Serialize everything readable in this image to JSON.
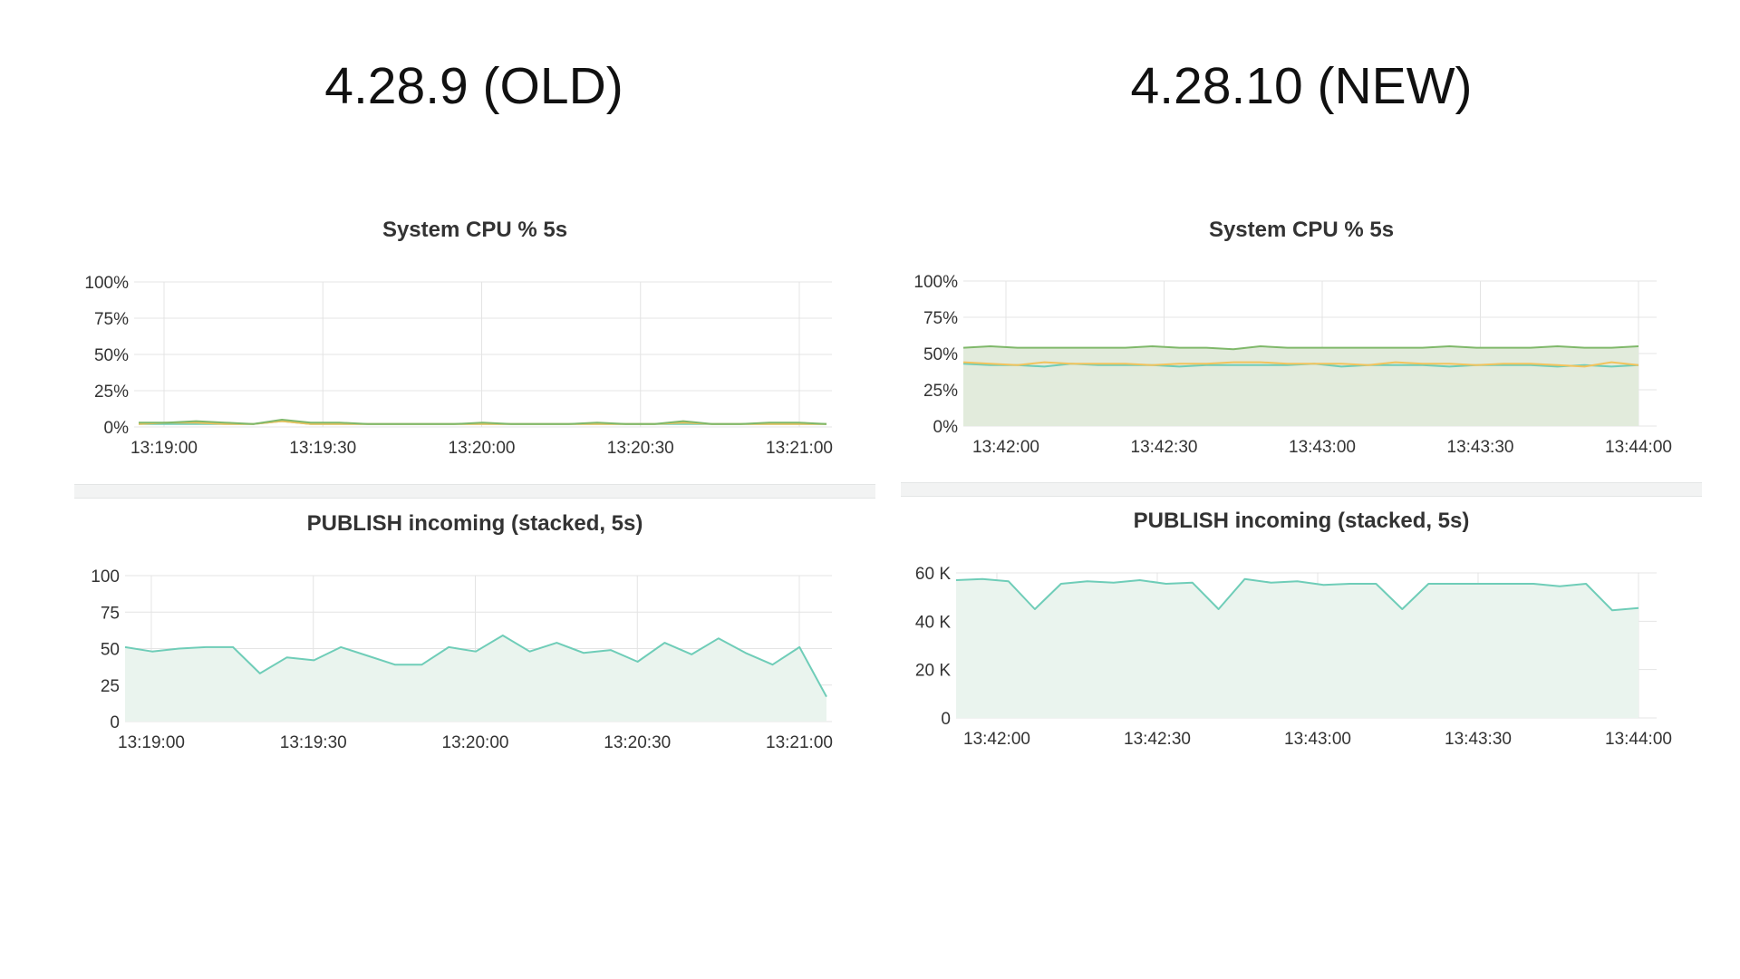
{
  "header": {
    "left_title": "4.28.9 (OLD)",
    "right_title": "4.28.10 (NEW)"
  },
  "colors": {
    "grid": "#e4e4e4",
    "teal": "#6fcdb8",
    "green": "#7fb86a",
    "yellow": "#f2c35d",
    "fill_light": "#eaf4ee",
    "fill_green": "#e2ebdc"
  },
  "chart_data": [
    {
      "id": "cpu-old",
      "type": "line",
      "title": "System CPU % 5s",
      "x_ticks": [
        "13:19:00",
        "13:19:30",
        "13:20:00",
        "13:20:30",
        "13:21:00"
      ],
      "y_ticks": [
        "0%",
        "25%",
        "50%",
        "75%",
        "100%"
      ],
      "ylim": [
        0,
        100
      ],
      "series": [
        {
          "color": "#7fb86a",
          "values": [
            3,
            3,
            4,
            3,
            2,
            5,
            3,
            3,
            2,
            2,
            2,
            2,
            3,
            2,
            2,
            2,
            3,
            2,
            2,
            4,
            2,
            2,
            3,
            3,
            2
          ]
        },
        {
          "color": "#f2c35d",
          "values": [
            2,
            3,
            3,
            2,
            2,
            4,
            2,
            2,
            2,
            2,
            2,
            2,
            2,
            2,
            2,
            2,
            2,
            2,
            2,
            3,
            2,
            2,
            2,
            2,
            2
          ]
        },
        {
          "color": "#6fcdb8",
          "values": [
            2,
            2,
            2,
            2,
            2,
            4,
            2,
            2,
            2,
            2,
            2,
            2,
            2,
            2,
            2,
            2,
            2,
            2,
            2,
            2,
            2,
            2,
            2,
            2,
            2
          ]
        }
      ]
    },
    {
      "id": "publish-old",
      "type": "area",
      "title": "PUBLISH incoming (stacked, 5s)",
      "x_ticks": [
        "13:19:00",
        "13:19:30",
        "13:20:00",
        "13:20:30",
        "13:21:00"
      ],
      "y_ticks": [
        "0",
        "25",
        "50",
        "75",
        "100"
      ],
      "ylim": [
        0,
        100
      ],
      "series": [
        {
          "color": "#6fcdb8",
          "values": [
            51,
            48,
            50,
            51,
            51,
            33,
            44,
            42,
            51,
            45,
            39,
            39,
            51,
            48,
            59,
            48,
            54,
            47,
            49,
            41,
            54,
            46,
            57,
            47,
            39,
            51,
            17
          ]
        }
      ]
    },
    {
      "id": "cpu-new",
      "type": "area",
      "title": "System CPU % 5s",
      "x_ticks": [
        "13:42:00",
        "13:42:30",
        "13:43:00",
        "13:43:30",
        "13:44:00"
      ],
      "y_ticks": [
        "0%",
        "25%",
        "50%",
        "75%",
        "100%"
      ],
      "ylim": [
        0,
        100
      ],
      "series": [
        {
          "color": "#7fb86a",
          "values": [
            54,
            55,
            54,
            54,
            54,
            54,
            54,
            55,
            54,
            54,
            53,
            55,
            54,
            54,
            54,
            54,
            54,
            54,
            55,
            54,
            54,
            54,
            55,
            54,
            54,
            55
          ]
        },
        {
          "color": "#f2c35d",
          "values": [
            44,
            43,
            42,
            44,
            43,
            43,
            43,
            42,
            43,
            43,
            44,
            44,
            43,
            43,
            43,
            42,
            44,
            43,
            43,
            42,
            43,
            43,
            42,
            41,
            44,
            42
          ]
        },
        {
          "color": "#6fcdb8",
          "values": [
            43,
            42,
            42,
            41,
            43,
            42,
            42,
            42,
            41,
            42,
            42,
            42,
            42,
            43,
            41,
            42,
            42,
            42,
            41,
            42,
            42,
            42,
            41,
            42,
            41,
            42
          ]
        }
      ]
    },
    {
      "id": "publish-new",
      "type": "area",
      "title": "PUBLISH incoming (stacked, 5s)",
      "x_ticks": [
        "13:42:00",
        "13:42:30",
        "13:43:00",
        "13:43:30",
        "13:44:00"
      ],
      "y_ticks": [
        "0",
        "20 K",
        "40 K",
        "60 K"
      ],
      "ylim": [
        0,
        60000
      ],
      "series": [
        {
          "color": "#6fcdb8",
          "values": [
            57000,
            57500,
            56500,
            45000,
            55500,
            56500,
            56000,
            57000,
            55500,
            56000,
            45000,
            57500,
            56000,
            56500,
            55000,
            55500,
            55500,
            45000,
            55500,
            55500,
            55500,
            55500,
            55500,
            54500,
            55500,
            44500,
            45500
          ]
        }
      ]
    }
  ]
}
